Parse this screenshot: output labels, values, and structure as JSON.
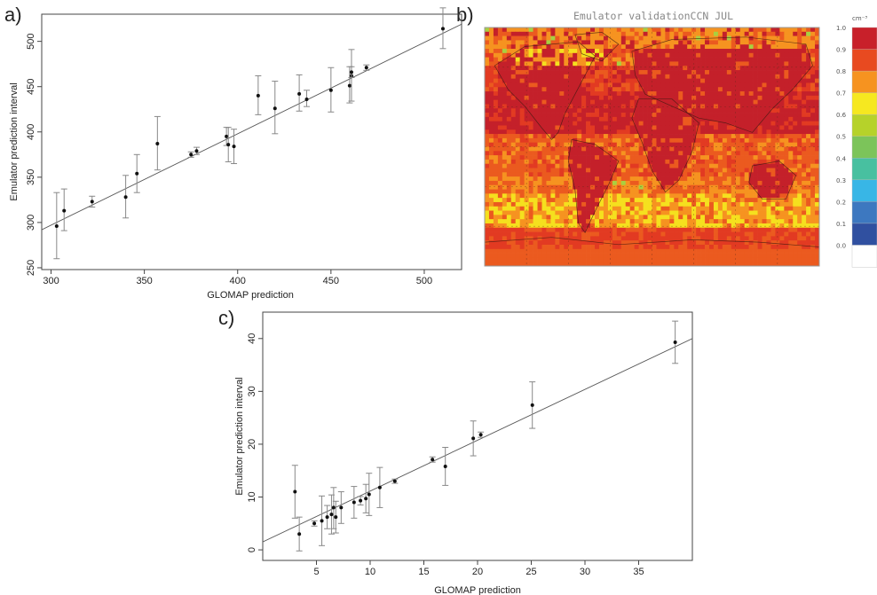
{
  "panels": {
    "a": {
      "letter": "a)"
    },
    "b": {
      "letter": "b)"
    },
    "c": {
      "letter": "c)"
    }
  },
  "chart_data": [
    {
      "id": "a",
      "type": "scatter",
      "title": "",
      "xlabel": "GLOMAP prediction",
      "ylabel": "Emulator prediction interval",
      "xlim": [
        295,
        520
      ],
      "ylim": [
        248,
        530
      ],
      "xticks": [
        300,
        350,
        400,
        450,
        500
      ],
      "yticks": [
        250,
        300,
        350,
        400,
        450,
        500
      ],
      "fit_line": {
        "x": [
          295,
          520
        ],
        "y": [
          292,
          519
        ]
      },
      "points": [
        {
          "x": 303,
          "y": 296,
          "lo": 260,
          "hi": 333
        },
        {
          "x": 307,
          "y": 313,
          "lo": 291,
          "hi": 337
        },
        {
          "x": 322,
          "y": 323,
          "lo": 317,
          "hi": 329
        },
        {
          "x": 340,
          "y": 328,
          "lo": 305,
          "hi": 352
        },
        {
          "x": 346,
          "y": 354,
          "lo": 333,
          "hi": 375
        },
        {
          "x": 357,
          "y": 387,
          "lo": 358,
          "hi": 417
        },
        {
          "x": 375,
          "y": 375,
          "lo": 372,
          "hi": 378
        },
        {
          "x": 378,
          "y": 379,
          "lo": 375,
          "hi": 383
        },
        {
          "x": 394,
          "y": 395,
          "lo": 385,
          "hi": 405
        },
        {
          "x": 395,
          "y": 386,
          "lo": 367,
          "hi": 405
        },
        {
          "x": 398,
          "y": 384,
          "lo": 365,
          "hi": 403
        },
        {
          "x": 411,
          "y": 440,
          "lo": 419,
          "hi": 462
        },
        {
          "x": 420,
          "y": 426,
          "lo": 398,
          "hi": 456
        },
        {
          "x": 433,
          "y": 442,
          "lo": 423,
          "hi": 463
        },
        {
          "x": 437,
          "y": 436,
          "lo": 428,
          "hi": 446
        },
        {
          "x": 450,
          "y": 446,
          "lo": 422,
          "hi": 471
        },
        {
          "x": 460,
          "y": 451,
          "lo": 432,
          "hi": 472
        },
        {
          "x": 461,
          "y": 462,
          "lo": 434,
          "hi": 491
        },
        {
          "x": 461,
          "y": 466,
          "lo": 460,
          "hi": 472
        },
        {
          "x": 469,
          "y": 471,
          "lo": 468,
          "hi": 474
        },
        {
          "x": 510,
          "y": 514,
          "lo": 492,
          "hi": 537
        }
      ]
    },
    {
      "id": "b",
      "type": "heatmap",
      "title": "Emulator validationCCN JUL",
      "colorbar_unit": "cm⁻³",
      "colorbar_ticks": [
        "1.0",
        "0.9",
        "0.8",
        "0.7",
        "0.6",
        "0.5",
        "0.4",
        "0.3",
        "0.2",
        "0.1",
        "0.0"
      ],
      "colorbar_colors": [
        "#c8202a",
        "#e84a20",
        "#f69320",
        "#f6e820",
        "#b6d22a",
        "#7cc45a",
        "#48c0a0",
        "#38b6e6",
        "#3d78c0",
        "#3050a0",
        "#ffffff"
      ]
    },
    {
      "id": "c",
      "type": "scatter",
      "title": "",
      "xlabel": "GLOMAP prediction",
      "ylabel": "Emulator prediction interval",
      "xlim": [
        0,
        40
      ],
      "ylim": [
        -2,
        45
      ],
      "xticks": [
        5,
        10,
        15,
        20,
        25,
        30,
        35
      ],
      "yticks": [
        0,
        10,
        20,
        30,
        40
      ],
      "fit_line": {
        "x": [
          0,
          40
        ],
        "y": [
          1.5,
          40
        ]
      },
      "points": [
        {
          "x": 3.0,
          "y": 11.0,
          "lo": 6.0,
          "hi": 16.0
        },
        {
          "x": 3.4,
          "y": 3.0,
          "lo": -0.2,
          "hi": 6.2
        },
        {
          "x": 4.8,
          "y": 5.0,
          "lo": 4.5,
          "hi": 5.5
        },
        {
          "x": 5.5,
          "y": 5.5,
          "lo": 0.8,
          "hi": 10.2
        },
        {
          "x": 6.0,
          "y": 6.2,
          "lo": 4.0,
          "hi": 8.4
        },
        {
          "x": 6.4,
          "y": 6.7,
          "lo": 3.0,
          "hi": 10.4
        },
        {
          "x": 6.6,
          "y": 8.0,
          "lo": 4.0,
          "hi": 11.8
        },
        {
          "x": 6.8,
          "y": 6.2,
          "lo": 3.2,
          "hi": 9.2
        },
        {
          "x": 7.3,
          "y": 8.0,
          "lo": 5.0,
          "hi": 11.0
        },
        {
          "x": 8.5,
          "y": 9.0,
          "lo": 6.0,
          "hi": 12.0
        },
        {
          "x": 9.1,
          "y": 9.3,
          "lo": 8.5,
          "hi": 10.1
        },
        {
          "x": 9.6,
          "y": 9.7,
          "lo": 7.0,
          "hi": 12.4
        },
        {
          "x": 9.9,
          "y": 10.5,
          "lo": 6.5,
          "hi": 14.5
        },
        {
          "x": 10.9,
          "y": 11.8,
          "lo": 8.0,
          "hi": 15.6
        },
        {
          "x": 12.3,
          "y": 13.0,
          "lo": 12.6,
          "hi": 13.4
        },
        {
          "x": 15.8,
          "y": 17.1,
          "lo": 16.6,
          "hi": 17.6
        },
        {
          "x": 17.0,
          "y": 15.8,
          "lo": 12.2,
          "hi": 19.4
        },
        {
          "x": 19.6,
          "y": 21.1,
          "lo": 17.8,
          "hi": 24.4
        },
        {
          "x": 20.3,
          "y": 21.8,
          "lo": 21.3,
          "hi": 22.3
        },
        {
          "x": 25.1,
          "y": 27.4,
          "lo": 23.0,
          "hi": 31.8
        },
        {
          "x": 38.4,
          "y": 39.3,
          "lo": 35.3,
          "hi": 43.3
        }
      ]
    }
  ]
}
